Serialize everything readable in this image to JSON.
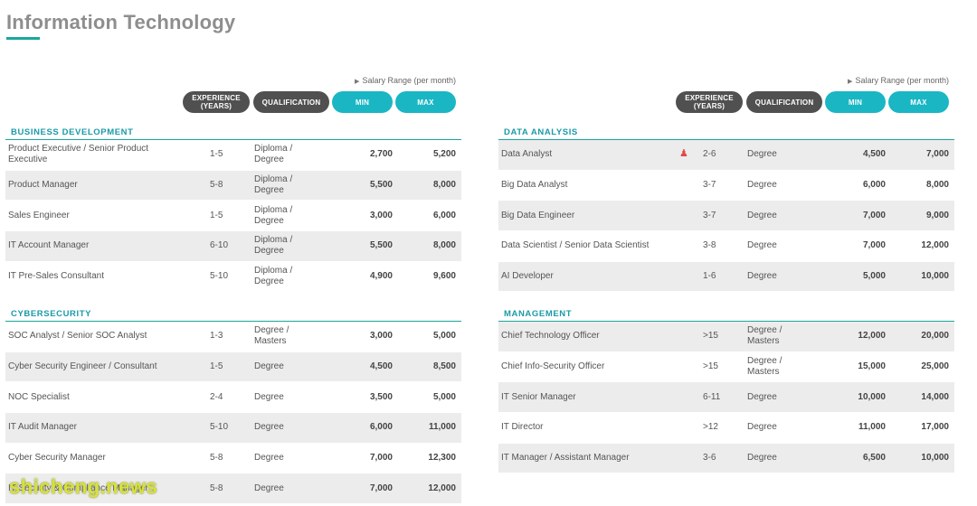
{
  "page": {
    "title": "Information Technology",
    "accent_color": "#1aa79c",
    "pill_dark_color": "#505050",
    "pill_teal_color": "#1ab6c4"
  },
  "header": {
    "salary_caption": "Salary Range (per month)",
    "experience": "EXPERIENCE (YEARS)",
    "qualification": "QUALIFICATION",
    "min": "MIN",
    "max": "MAX"
  },
  "sections": {
    "business_development": {
      "title": "BUSINESS DEVELOPMENT",
      "rows": [
        {
          "job": "Product Executive / Senior Product Executive",
          "exp": "1-5",
          "qual": "Diploma / Degree",
          "min": "2,700",
          "max": "5,200"
        },
        {
          "job": "Product Manager",
          "exp": "5-8",
          "qual": "Diploma / Degree",
          "min": "5,500",
          "max": "8,000"
        },
        {
          "job": "Sales Engineer",
          "exp": "1-5",
          "qual": "Diploma / Degree",
          "min": "3,000",
          "max": "6,000"
        },
        {
          "job": "IT Account Manager",
          "exp": "6-10",
          "qual": "Diploma / Degree",
          "min": "5,500",
          "max": "8,000"
        },
        {
          "job": "IT Pre-Sales Consultant",
          "exp": "5-10",
          "qual": "Diploma / Degree",
          "min": "4,900",
          "max": "9,600"
        }
      ]
    },
    "cybersecurity": {
      "title": "CYBERSECURITY",
      "rows": [
        {
          "job": "SOC Analyst / Senior SOC Analyst",
          "exp": "1-3",
          "qual": "Degree / Masters",
          "min": "3,000",
          "max": "5,000"
        },
        {
          "job": "Cyber Security Engineer / Consultant",
          "exp": "1-5",
          "qual": "Degree",
          "min": "4,500",
          "max": "8,500"
        },
        {
          "job": "NOC Specialist",
          "exp": "2-4",
          "qual": "Degree",
          "min": "3,500",
          "max": "5,000"
        },
        {
          "job": "IT Audit Manager",
          "exp": "5-10",
          "qual": "Degree",
          "min": "6,000",
          "max": "11,000"
        },
        {
          "job": "Cyber Security Manager",
          "exp": "5-8",
          "qual": "Degree",
          "min": "7,000",
          "max": "12,300"
        },
        {
          "job": "IT Security & Compliance Manager",
          "exp": "5-8",
          "qual": "Degree",
          "min": "7,000",
          "max": "12,000"
        }
      ]
    },
    "data_analysis": {
      "title": "DATA ANALYSIS",
      "rows": [
        {
          "job": "Data Analyst",
          "exp": "2-6",
          "qual": "Degree",
          "min": "4,500",
          "max": "7,000"
        },
        {
          "job": "Big Data Analyst",
          "exp": "3-7",
          "qual": "Degree",
          "min": "6,000",
          "max": "8,000"
        },
        {
          "job": "Big Data Engineer",
          "exp": "3-7",
          "qual": "Degree",
          "min": "7,000",
          "max": "9,000"
        },
        {
          "job": "Data Scientist / Senior Data Scientist",
          "exp": "3-8",
          "qual": "Degree",
          "min": "7,000",
          "max": "12,000"
        },
        {
          "job": "AI Developer",
          "exp": "1-6",
          "qual": "Degree",
          "min": "5,000",
          "max": "10,000"
        }
      ]
    },
    "management": {
      "title": "MANAGEMENT",
      "rows": [
        {
          "job": "Chief Technology Officer",
          "exp": ">15",
          "qual": "Degree / Masters",
          "min": "12,000",
          "max": "20,000"
        },
        {
          "job": "Chief Info-Security Officer",
          "exp": ">15",
          "qual": "Degree / Masters",
          "min": "15,000",
          "max": "25,000"
        },
        {
          "job": "IT Senior Manager",
          "exp": "6-11",
          "qual": "Degree",
          "min": "10,000",
          "max": "14,000"
        },
        {
          "job": "IT Director",
          "exp": ">12",
          "qual": "Degree",
          "min": "11,000",
          "max": "17,000"
        },
        {
          "job": "IT Manager / Assistant Manager",
          "exp": "3-6",
          "qual": "Degree",
          "min": "6,500",
          "max": "10,000"
        }
      ]
    }
  },
  "watermark": {
    "text": "shicheng.news",
    "color": "#d8e13a"
  }
}
